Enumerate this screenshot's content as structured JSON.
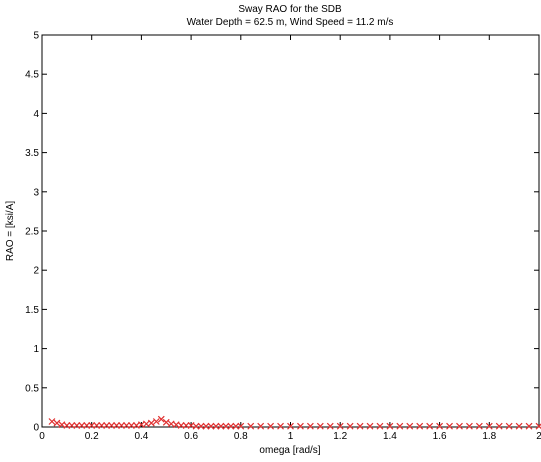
{
  "chart_data": {
    "type": "scatter",
    "title": "Sway RAO for the SDB",
    "subtitle": "Water Depth = 62.5 m, Wind Speed = 11.2 m/s",
    "xlabel": "omega [rad/s]",
    "ylabel": "RAO = [ksi/A]",
    "xlim": [
      0,
      2
    ],
    "ylim": [
      0,
      5
    ],
    "xticks": [
      0,
      0.2,
      0.4,
      0.6,
      0.8,
      1,
      1.2,
      1.4,
      1.6,
      1.8,
      2
    ],
    "xtick_labels": [
      "0",
      "0.2",
      "0.4",
      "0.6",
      "0.8",
      "1",
      "1.2",
      "1.4",
      "1.6",
      "1.8",
      "2"
    ],
    "yticks": [
      0,
      0.5,
      1,
      1.5,
      2,
      2.5,
      3,
      3.5,
      4,
      4.5,
      5
    ],
    "ytick_labels": [
      "0",
      "0.5",
      "1",
      "1.5",
      "2",
      "2.5",
      "3",
      "3.5",
      "4",
      "4.5",
      "5"
    ],
    "grid": false,
    "marker": "x",
    "color": "#e03030",
    "series": [
      {
        "x": [
          0.04,
          0.06,
          0.08,
          0.1,
          0.12,
          0.14,
          0.16,
          0.18,
          0.2,
          0.22,
          0.24,
          0.26,
          0.28,
          0.3,
          0.32,
          0.34,
          0.36,
          0.38,
          0.4,
          0.42,
          0.44,
          0.46,
          0.48,
          0.5,
          0.52,
          0.54,
          0.56,
          0.58,
          0.6,
          0.62,
          0.64,
          0.66,
          0.68,
          0.7,
          0.72,
          0.74,
          0.76,
          0.78,
          0.8,
          0.84,
          0.88,
          0.92,
          0.96,
          1.0,
          1.04,
          1.08,
          1.12,
          1.16,
          1.2,
          1.24,
          1.28,
          1.32,
          1.36,
          1.4,
          1.44,
          1.48,
          1.52,
          1.56,
          1.6,
          1.64,
          1.68,
          1.72,
          1.76,
          1.8,
          1.84,
          1.88,
          1.92,
          1.96,
          2.0
        ],
        "y": [
          0.07,
          0.05,
          0.03,
          0.02,
          0.02,
          0.02,
          0.02,
          0.02,
          0.02,
          0.02,
          0.02,
          0.02,
          0.02,
          0.02,
          0.02,
          0.02,
          0.02,
          0.02,
          0.03,
          0.04,
          0.05,
          0.07,
          0.1,
          0.06,
          0.04,
          0.03,
          0.02,
          0.02,
          0.02,
          0.01,
          0.01,
          0.01,
          0.01,
          0.01,
          0.01,
          0.01,
          0.01,
          0.01,
          0.01,
          0.01,
          0.01,
          0.01,
          0.01,
          0.01,
          0.01,
          0.01,
          0.01,
          0.01,
          0.01,
          0.01,
          0.01,
          0.01,
          0.01,
          0.01,
          0.01,
          0.01,
          0.01,
          0.01,
          0.01,
          0.01,
          0.01,
          0.01,
          0.01,
          0.01,
          0.01,
          0.01,
          0.01,
          0.01,
          0.01
        ]
      }
    ]
  }
}
